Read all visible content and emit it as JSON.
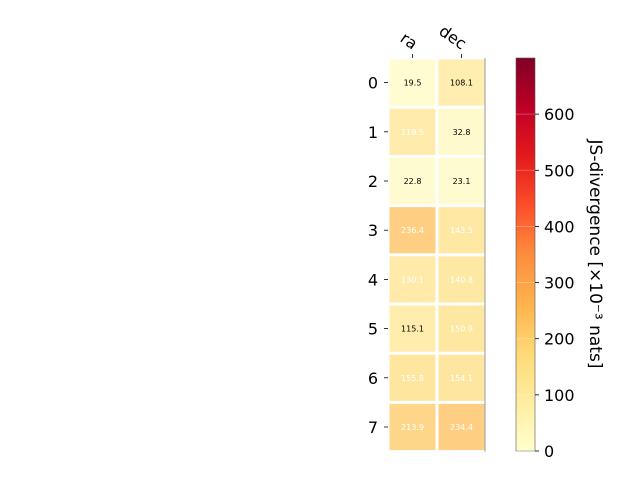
{
  "chart_data": {
    "type": "heatmap",
    "columns": [
      "ra",
      "dec"
    ],
    "rows": [
      "0",
      "1",
      "2",
      "3",
      "4",
      "5",
      "6",
      "7"
    ],
    "values": [
      [
        19.5,
        108.1
      ],
      [
        119.5,
        32.8
      ],
      [
        22.8,
        23.1
      ],
      [
        236.4,
        143.5
      ],
      [
        130.1,
        140.8
      ],
      [
        115.1,
        150.9
      ],
      [
        155.8,
        154.1
      ],
      [
        213.9,
        234.4
      ]
    ],
    "labels": [
      [
        "19.5",
        "108.1"
      ],
      [
        "119.5",
        "32.8"
      ],
      [
        "22.8",
        "23.1"
      ],
      [
        "236.4",
        "143.5"
      ],
      [
        "130.1",
        "140.8"
      ],
      [
        "115.1",
        "150.9"
      ],
      [
        "155.8",
        "154.1"
      ],
      [
        "213.9",
        "234.4"
      ]
    ],
    "label_colors": [
      [
        "#000000",
        "#000000"
      ],
      [
        "#ffffff",
        "#000000"
      ],
      [
        "#000000",
        "#000000"
      ],
      [
        "#ffffff",
        "#ffffff"
      ],
      [
        "#ffffff",
        "#ffffff"
      ],
      [
        "#000000",
        "#ffffff"
      ],
      [
        "#ffffff",
        "#ffffff"
      ],
      [
        "#ffffff",
        "#ffffff"
      ]
    ],
    "colormap": "YlOrRd",
    "vmin": 0,
    "vmax": 700,
    "colorbar_ticks": [
      "0",
      "100",
      "200",
      "300",
      "400",
      "500",
      "600"
    ],
    "colorbar_label": "JS-divergence [×10⁻³ nats]"
  }
}
